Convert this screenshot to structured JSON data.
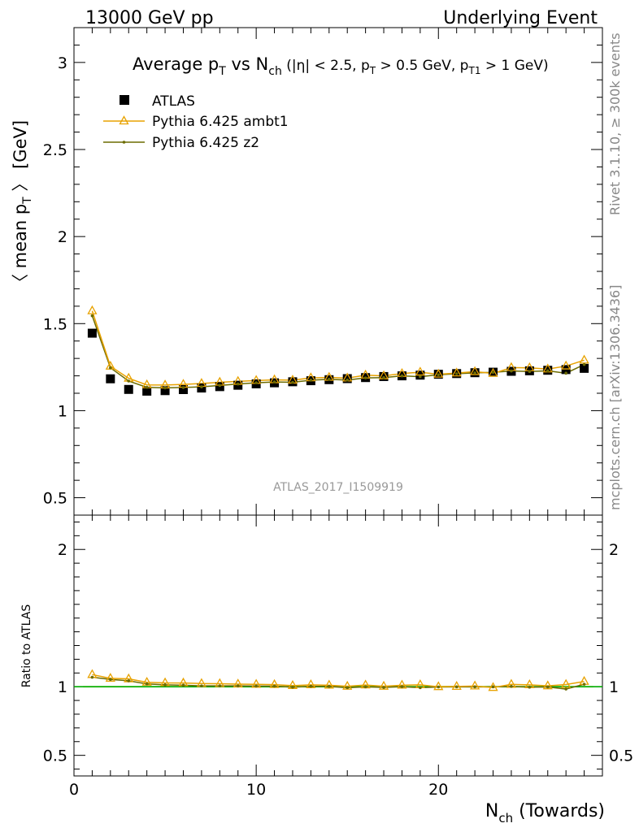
{
  "header": {
    "left": "13000 GeV pp",
    "right": "Underlying Event"
  },
  "side_labels": {
    "rivet": "Rivet 3.1.10, ≥ 300k events",
    "mcplots": "mcplots.cern.ch [arXiv:1306.3436]"
  },
  "watermark": "ATLAS_2017_I1509919",
  "colors": {
    "atlas": "#000000",
    "ambt1": "#e8a200",
    "z2": "#6b6b00",
    "ratio_ref": "#00aa00",
    "band": "#d7f5a0"
  },
  "chart_data": [
    {
      "type": "scatter",
      "panel": "main",
      "title": {
        "prefix": "Average p",
        "prefix_sub": "T",
        "mid": " vs N",
        "mid_sub": "ch",
        "rest1": " (|η| < 2.5, p",
        "rest1_sub": "T",
        "rest2": " > 0.5 GeV, p",
        "rest2_sub": "T1",
        "rest3": " > 1 GeV)"
      },
      "ylabel": {
        "main": "〈 mean p",
        "sub": "T",
        "tail": " 〉 [GeV]"
      },
      "xlim": [
        0,
        29
      ],
      "ylim": [
        0.4,
        3.2
      ],
      "yticks": [
        0.5,
        1,
        1.5,
        2,
        2.5,
        3
      ],
      "ytick_labels": [
        "0.5",
        "1",
        "1.5",
        "2",
        "2.5",
        "3"
      ],
      "legend_position": "top-left",
      "x": [
        1,
        2,
        3,
        4,
        5,
        6,
        7,
        8,
        9,
        10,
        11,
        12,
        13,
        14,
        15,
        16,
        17,
        18,
        19,
        20,
        21,
        22,
        23,
        24,
        25,
        26,
        27,
        28
      ],
      "series": [
        {
          "name": "ATLAS",
          "style": "marker",
          "values": [
            1.445,
            1.183,
            1.122,
            1.112,
            1.115,
            1.121,
            1.13,
            1.138,
            1.146,
            1.154,
            1.16,
            1.166,
            1.172,
            1.178,
            1.184,
            1.19,
            1.196,
            1.2,
            1.204,
            1.209,
            1.213,
            1.218,
            1.221,
            1.226,
            1.229,
            1.232,
            1.236,
            1.243
          ]
        },
        {
          "name": "Pythia 6.425 ambt1",
          "style": "line-triangle",
          "values": [
            1.573,
            1.255,
            1.186,
            1.148,
            1.147,
            1.151,
            1.156,
            1.163,
            1.168,
            1.173,
            1.177,
            1.175,
            1.188,
            1.191,
            1.187,
            1.204,
            1.2,
            1.213,
            1.221,
            1.209,
            1.216,
            1.224,
            1.214,
            1.247,
            1.246,
            1.239,
            1.256,
            1.29
          ]
        },
        {
          "name": "Pythia 6.425 z2",
          "style": "line-dot",
          "values": [
            1.545,
            1.246,
            1.17,
            1.134,
            1.131,
            1.133,
            1.137,
            1.145,
            1.153,
            1.16,
            1.165,
            1.163,
            1.175,
            1.18,
            1.176,
            1.188,
            1.19,
            1.2,
            1.195,
            1.206,
            1.212,
            1.217,
            1.22,
            1.228,
            1.225,
            1.229,
            1.215,
            1.265
          ]
        }
      ]
    },
    {
      "type": "line",
      "panel": "ratio",
      "ylabel": "Ratio to ATLAS",
      "xlabel": {
        "main": "N",
        "sub": "ch",
        "tail": " (Towards)"
      },
      "xlim": [
        0,
        29
      ],
      "xticks": [
        0,
        10,
        20
      ],
      "xtick_labels": [
        "0",
        "10",
        "20"
      ],
      "ylim": [
        0.35,
        2.25
      ],
      "yticks": [
        0.5,
        1,
        2
      ],
      "ytick_labels": [
        "0.5",
        "1",
        "2"
      ],
      "x": [
        1,
        2,
        3,
        4,
        5,
        6,
        7,
        8,
        9,
        10,
        11,
        12,
        13,
        14,
        15,
        16,
        17,
        18,
        19,
        20,
        21,
        22,
        23,
        24,
        25,
        26,
        27,
        28
      ],
      "series": [
        {
          "name": "Pythia 6.425 ambt1",
          "values": [
            1.088,
            1.061,
            1.057,
            1.032,
            1.028,
            1.027,
            1.023,
            1.022,
            1.019,
            1.017,
            1.015,
            1.008,
            1.014,
            1.011,
            1.003,
            1.012,
            1.003,
            1.011,
            1.014,
            1.0,
            1.002,
            1.005,
            0.994,
            1.017,
            1.014,
            1.006,
            1.016,
            1.038
          ]
        },
        {
          "name": "Pythia 6.425 z2",
          "values": [
            1.069,
            1.053,
            1.043,
            1.02,
            1.014,
            1.011,
            1.006,
            1.006,
            1.006,
            1.005,
            1.004,
            0.997,
            1.003,
            1.002,
            0.993,
            0.999,
            0.995,
            1.0,
            0.993,
            0.998,
            0.999,
            0.999,
            0.999,
            1.002,
            0.997,
            0.998,
            0.983,
            1.018
          ]
        }
      ]
    }
  ]
}
